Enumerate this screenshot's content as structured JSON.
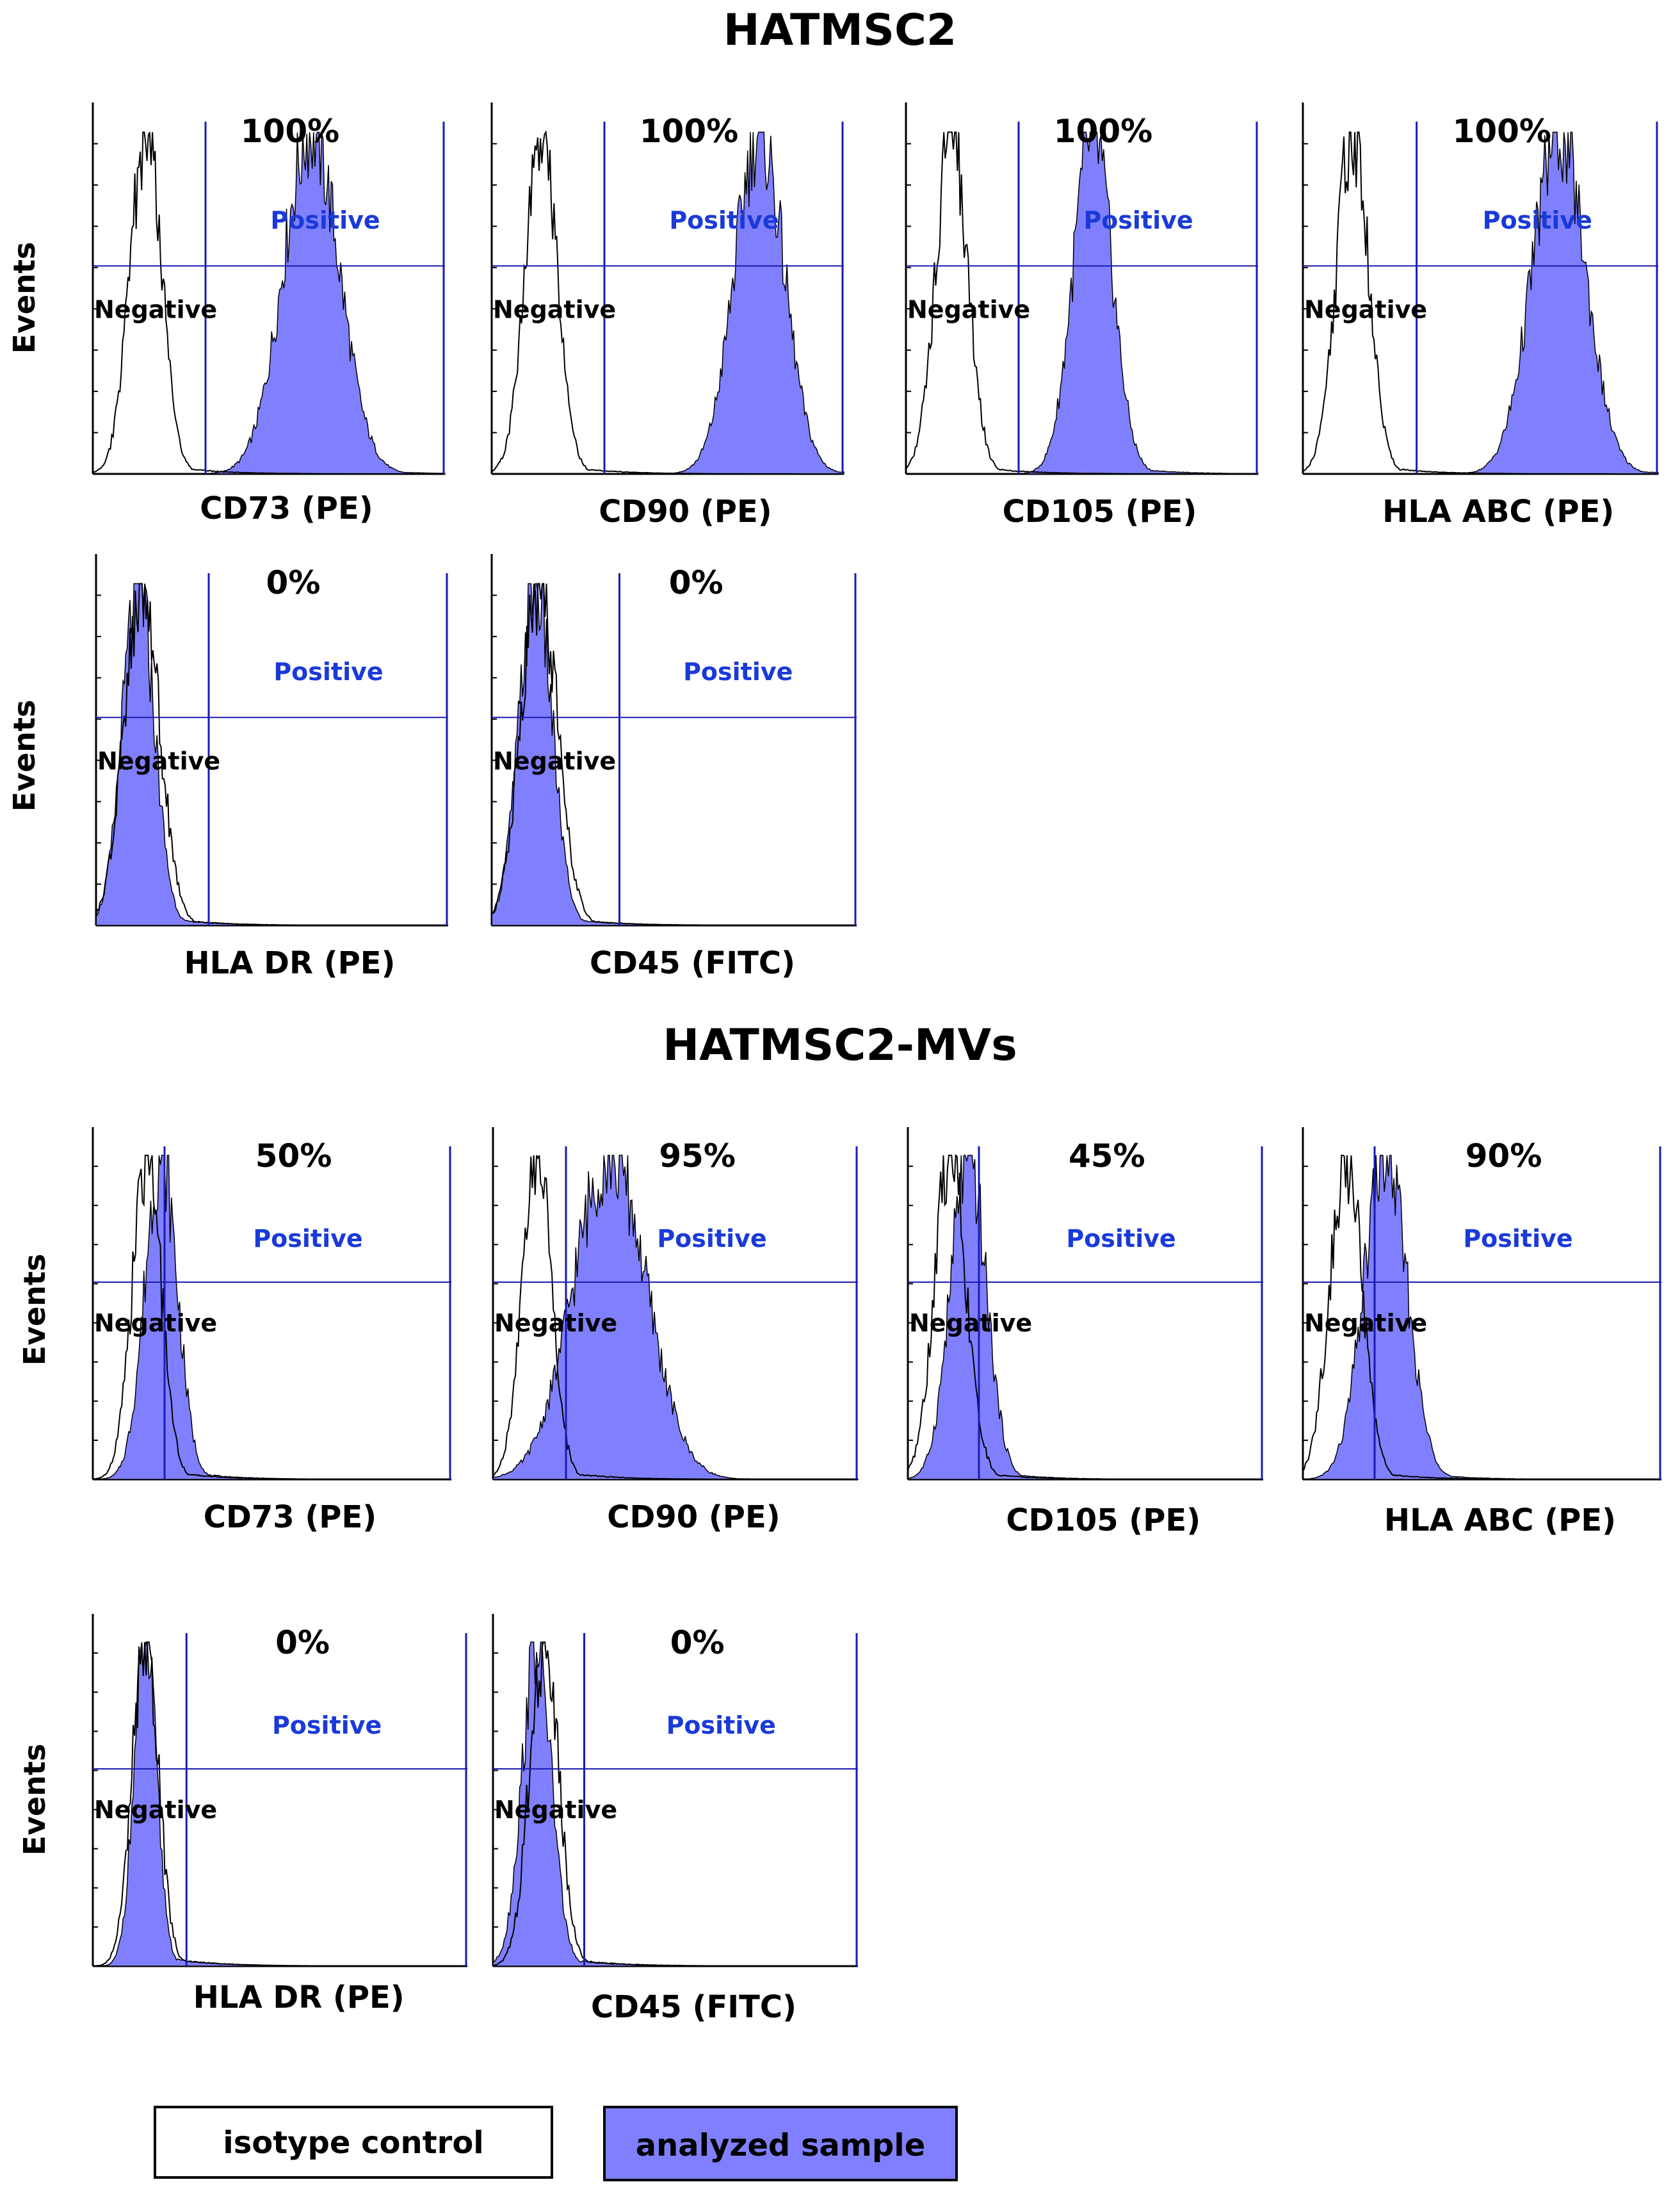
{
  "colors": {
    "sample_fill": "#8080ff",
    "gate_line": "#1a1ab4",
    "positive_label": "#1a3ad8",
    "isotope_line": "#000000"
  },
  "sections": [
    {
      "title": "HATMSC2"
    },
    {
      "title": "HATMSC2-MVs"
    }
  ],
  "labels": {
    "events": "Events",
    "positive": "Positive",
    "negative": "Negative"
  },
  "legend": {
    "isotype": "isotype control",
    "sample": "analyzed sample"
  },
  "chart_data": [
    {
      "type": "area",
      "section": "HATMSC2",
      "marker": "CD73 (PE)",
      "percent_positive": "100%",
      "xlabel": "CD73 (PE)",
      "ylabel": "Events",
      "isotype_peak": 0.15,
      "isotype_width": 0.045,
      "sample_peak": 0.62,
      "sample_width": 0.08,
      "gate": 0.32
    },
    {
      "type": "area",
      "section": "HATMSC2",
      "marker": "CD90 (PE)",
      "percent_positive": "100%",
      "xlabel": "CD90 (PE)",
      "ylabel": "Events",
      "isotype_peak": 0.14,
      "isotype_width": 0.045,
      "sample_peak": 0.76,
      "sample_width": 0.07,
      "gate": 0.32
    },
    {
      "type": "area",
      "section": "HATMSC2",
      "marker": "CD105 (PE)",
      "percent_positive": "100%",
      "xlabel": "CD105 (PE)",
      "ylabel": "Events",
      "isotype_peak": 0.13,
      "isotype_width": 0.045,
      "sample_peak": 0.53,
      "sample_width": 0.055,
      "gate": 0.32
    },
    {
      "type": "area",
      "section": "HATMSC2",
      "marker": "HLA ABC (PE)",
      "percent_positive": "100%",
      "xlabel": "HLA ABC (PE)",
      "ylabel": "Events",
      "isotype_peak": 0.14,
      "isotype_width": 0.045,
      "sample_peak": 0.72,
      "sample_width": 0.075,
      "gate": 0.32
    },
    {
      "type": "area",
      "section": "HATMSC2",
      "marker": "HLA DR (PE)",
      "percent_positive": "0%",
      "xlabel": "HLA DR (PE)",
      "ylabel": "Events",
      "isotype_peak": 0.13,
      "isotype_width": 0.05,
      "sample_peak": 0.12,
      "sample_width": 0.045,
      "gate": 0.32
    },
    {
      "type": "area",
      "section": "HATMSC2",
      "marker": "CD45 (FITC)",
      "percent_positive": "0%",
      "xlabel": "CD45 (FITC)",
      "ylabel": "Events",
      "isotype_peak": 0.13,
      "isotype_width": 0.05,
      "sample_peak": 0.12,
      "sample_width": 0.045,
      "gate": 0.35
    },
    {
      "type": "area",
      "section": "HATMSC2-MVs",
      "marker": "CD73 (PE)",
      "percent_positive": "50%",
      "xlabel": "CD73 (PE)",
      "ylabel": "Events",
      "isotype_peak": 0.15,
      "isotype_width": 0.04,
      "sample_peak": 0.19,
      "sample_width": 0.045,
      "gate": 0.2
    },
    {
      "type": "area",
      "section": "HATMSC2-MVs",
      "marker": "CD90 (PE)",
      "percent_positive": "95%",
      "xlabel": "CD90 (PE)",
      "ylabel": "Events",
      "isotype_peak": 0.12,
      "isotype_width": 0.04,
      "sample_peak": 0.32,
      "sample_width": 0.1,
      "gate": 0.2
    },
    {
      "type": "area",
      "section": "HATMSC2-MVs",
      "marker": "CD105 (PE)",
      "percent_positive": "45%",
      "xlabel": "CD105 (PE)",
      "ylabel": "Events",
      "isotype_peak": 0.12,
      "isotype_width": 0.045,
      "sample_peak": 0.17,
      "sample_width": 0.05,
      "gate": 0.2
    },
    {
      "type": "area",
      "section": "HATMSC2-MVs",
      "marker": "HLA ABC (PE)",
      "percent_positive": "90%",
      "xlabel": "HLA ABC (PE)",
      "ylabel": "Events",
      "isotype_peak": 0.12,
      "isotype_width": 0.045,
      "sample_peak": 0.23,
      "sample_width": 0.06,
      "gate": 0.2
    },
    {
      "type": "area",
      "section": "HATMSC2-MVs",
      "marker": "HLA DR (PE)",
      "percent_positive": "0%",
      "xlabel": "HLA DR (PE)",
      "ylabel": "Events",
      "isotype_peak": 0.14,
      "isotype_width": 0.035,
      "sample_peak": 0.14,
      "sample_width": 0.03,
      "gate": 0.25
    },
    {
      "type": "area",
      "section": "HATMSC2-MVs",
      "marker": "CD45 (FITC)",
      "percent_positive": "0%",
      "xlabel": "CD45 (FITC)",
      "ylabel": "Events",
      "isotype_peak": 0.14,
      "isotype_width": 0.04,
      "sample_peak": 0.12,
      "sample_width": 0.04,
      "gate": 0.25
    }
  ]
}
